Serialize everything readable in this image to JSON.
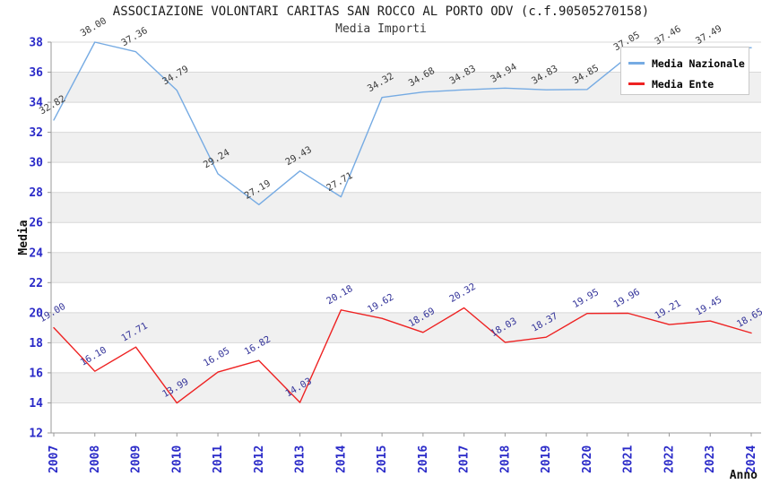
{
  "title": "ASSOCIAZIONE VOLONTARI CARITAS SAN ROCCO AL PORTO ODV (c.f.90505270158)",
  "subtitle": "Media Importi",
  "colors": {
    "background": "#ffffff",
    "stripe": "#f0f0f0",
    "gridline": "#d8d8d8",
    "axis": "#999999",
    "tick_label": "#2a2ac8",
    "legend_border": "#c9c9c9",
    "national_line": "#76abe3",
    "entity_line": "#ee2222",
    "national_value_label": "#3c3c3c",
    "entity_value_label": "#333399"
  },
  "chart_data": {
    "type": "line",
    "title": "ASSOCIAZIONE VOLONTARI CARITAS SAN ROCCO AL PORTO ODV (c.f.90505270158)",
    "subtitle": "Media Importi",
    "xlabel": "Anno",
    "ylabel": "Media",
    "ylim": [
      12,
      38
    ],
    "ytick_step": 2,
    "grid": true,
    "striped_bands": true,
    "legend_position": "top-right",
    "x": [
      "2007",
      "2008",
      "2009",
      "2010",
      "2011",
      "2012",
      "2013",
      "2014",
      "2015",
      "2016",
      "2017",
      "2018",
      "2019",
      "2020",
      "2021",
      "2022",
      "2023",
      "2024"
    ],
    "series": [
      {
        "name": "Media Nazionale",
        "color": "#76abe3",
        "label_color": "#3c3c3c",
        "values": [
          32.82,
          38.0,
          37.36,
          34.79,
          29.24,
          27.19,
          29.43,
          27.71,
          34.32,
          34.68,
          34.83,
          34.94,
          34.83,
          34.85,
          37.05,
          37.46,
          37.49,
          37.63
        ],
        "labels": [
          "32.82",
          "38.00",
          "37.36",
          "34.79",
          "29.24",
          "27.19",
          "29.43",
          "27.71",
          "34.32",
          "34.68",
          "34.83",
          "34.94",
          "34.83",
          "34.85",
          "37.05",
          "37.46",
          "37.49",
          ""
        ]
      },
      {
        "name": "Media Ente",
        "color": "#ee2222",
        "label_color": "#333399",
        "values": [
          19.0,
          16.1,
          17.71,
          13.99,
          16.05,
          16.82,
          14.03,
          20.18,
          19.62,
          18.69,
          20.32,
          18.03,
          18.37,
          19.95,
          19.96,
          19.21,
          19.45,
          18.65
        ],
        "labels": [
          "19.00",
          "16.10",
          "17.71",
          "13.99",
          "16.05",
          "16.82",
          "14.03",
          "20.18",
          "19.62",
          "18.69",
          "20.32",
          "18.03",
          "18.37",
          "19.95",
          "19.96",
          "19.21",
          "19.45",
          "18.65"
        ]
      }
    ]
  }
}
